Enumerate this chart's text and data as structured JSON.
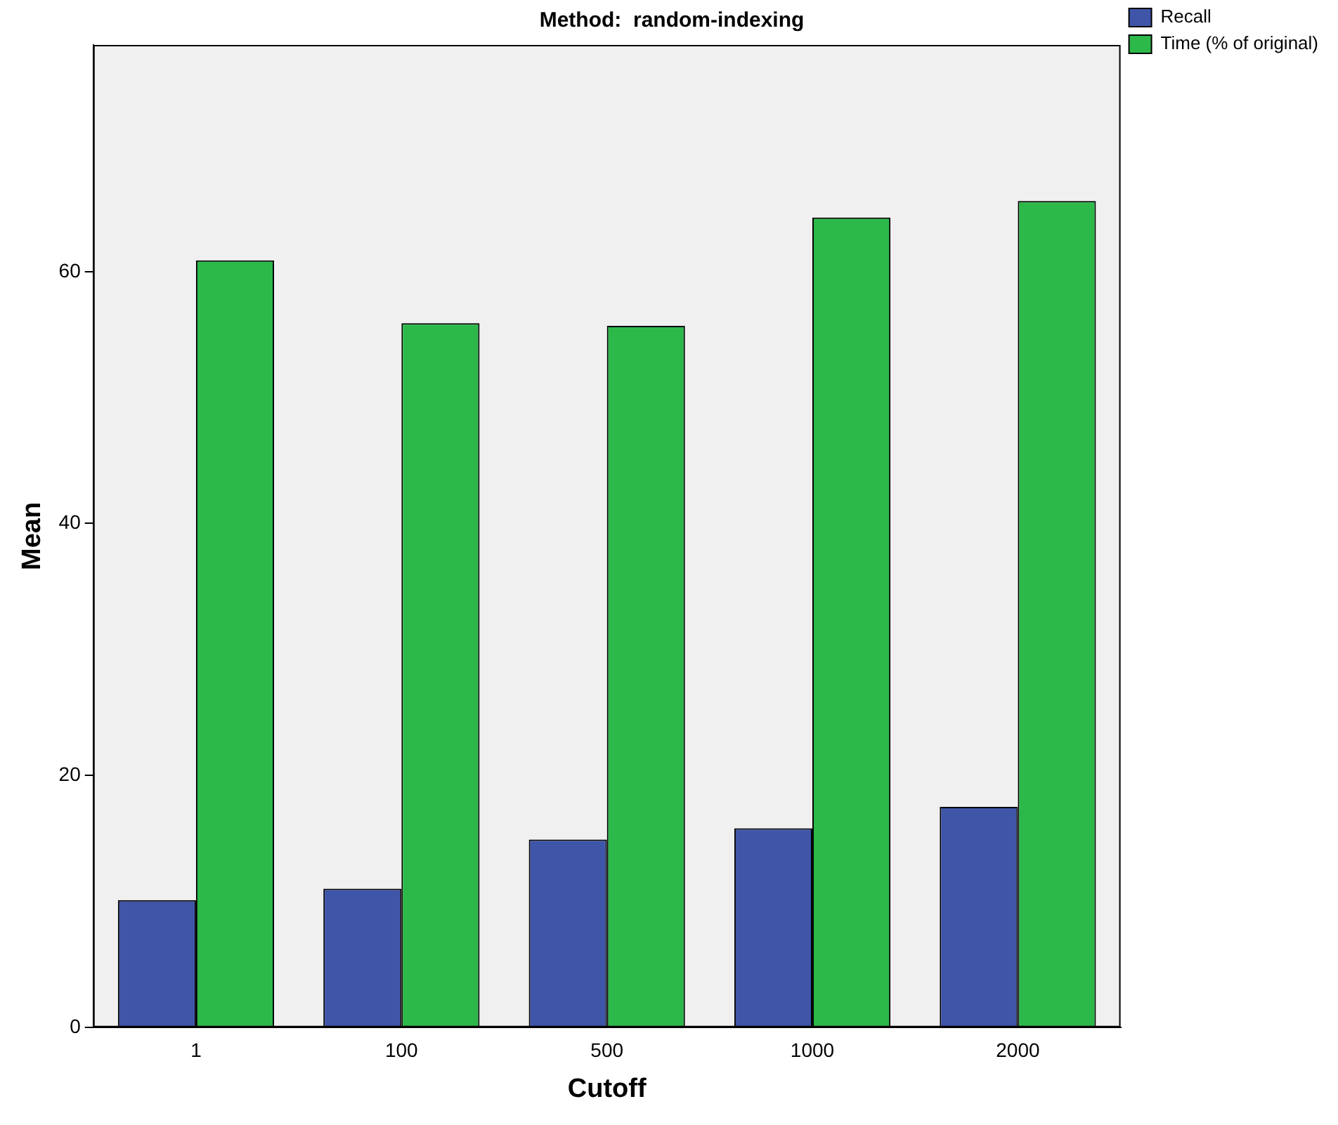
{
  "chart_data": {
    "type": "bar",
    "title": "Method:  random-indexing",
    "xlabel": "Cutoff",
    "ylabel": "Mean",
    "categories": [
      "1",
      "100",
      "500",
      "1000",
      "2000"
    ],
    "series": [
      {
        "name": "Recall",
        "color": "#3f55a8",
        "values": [
          10.1,
          11.0,
          14.9,
          15.8,
          17.5
        ]
      },
      {
        "name": "Time (% of original)",
        "color": "#2db84a",
        "values": [
          60.9,
          55.9,
          55.7,
          64.3,
          65.6
        ]
      }
    ],
    "ylim": [
      0,
      78
    ],
    "yticks": [
      0,
      20,
      40,
      60
    ],
    "grid": false,
    "legend": "top right"
  }
}
